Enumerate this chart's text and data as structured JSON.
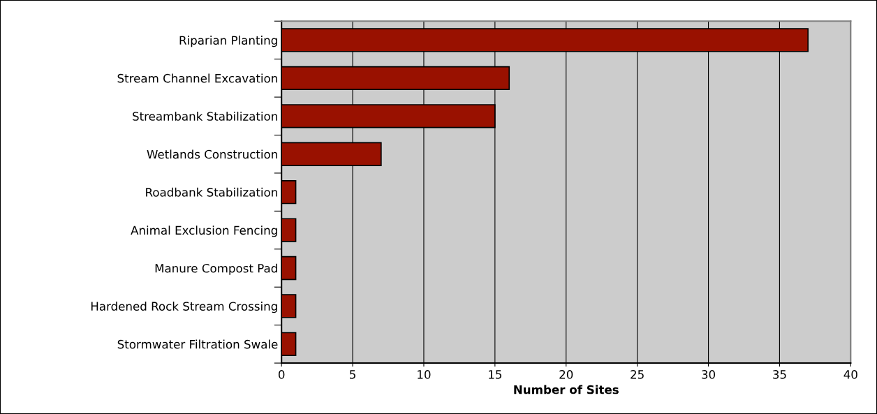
{
  "chart_data": {
    "type": "bar",
    "orientation": "horizontal",
    "xlabel": "Number of Sites",
    "categories": [
      "Riparian Planting",
      "Stream Channel Excavation",
      "Streambank Stabilization",
      "Wetlands Construction",
      "Roadbank Stabilization",
      "Animal Exclusion Fencing",
      "Manure Compost Pad",
      "Hardened Rock Stream Crossing",
      "Stormwater Filtration Swale"
    ],
    "values": [
      37,
      16,
      15,
      7,
      1,
      1,
      1,
      1,
      1
    ],
    "color": "#991100",
    "xlim": [
      0,
      40
    ],
    "xticks": [
      0,
      5,
      10,
      15,
      20,
      25,
      30,
      35,
      40
    ],
    "grid": "x",
    "legend": false
  }
}
